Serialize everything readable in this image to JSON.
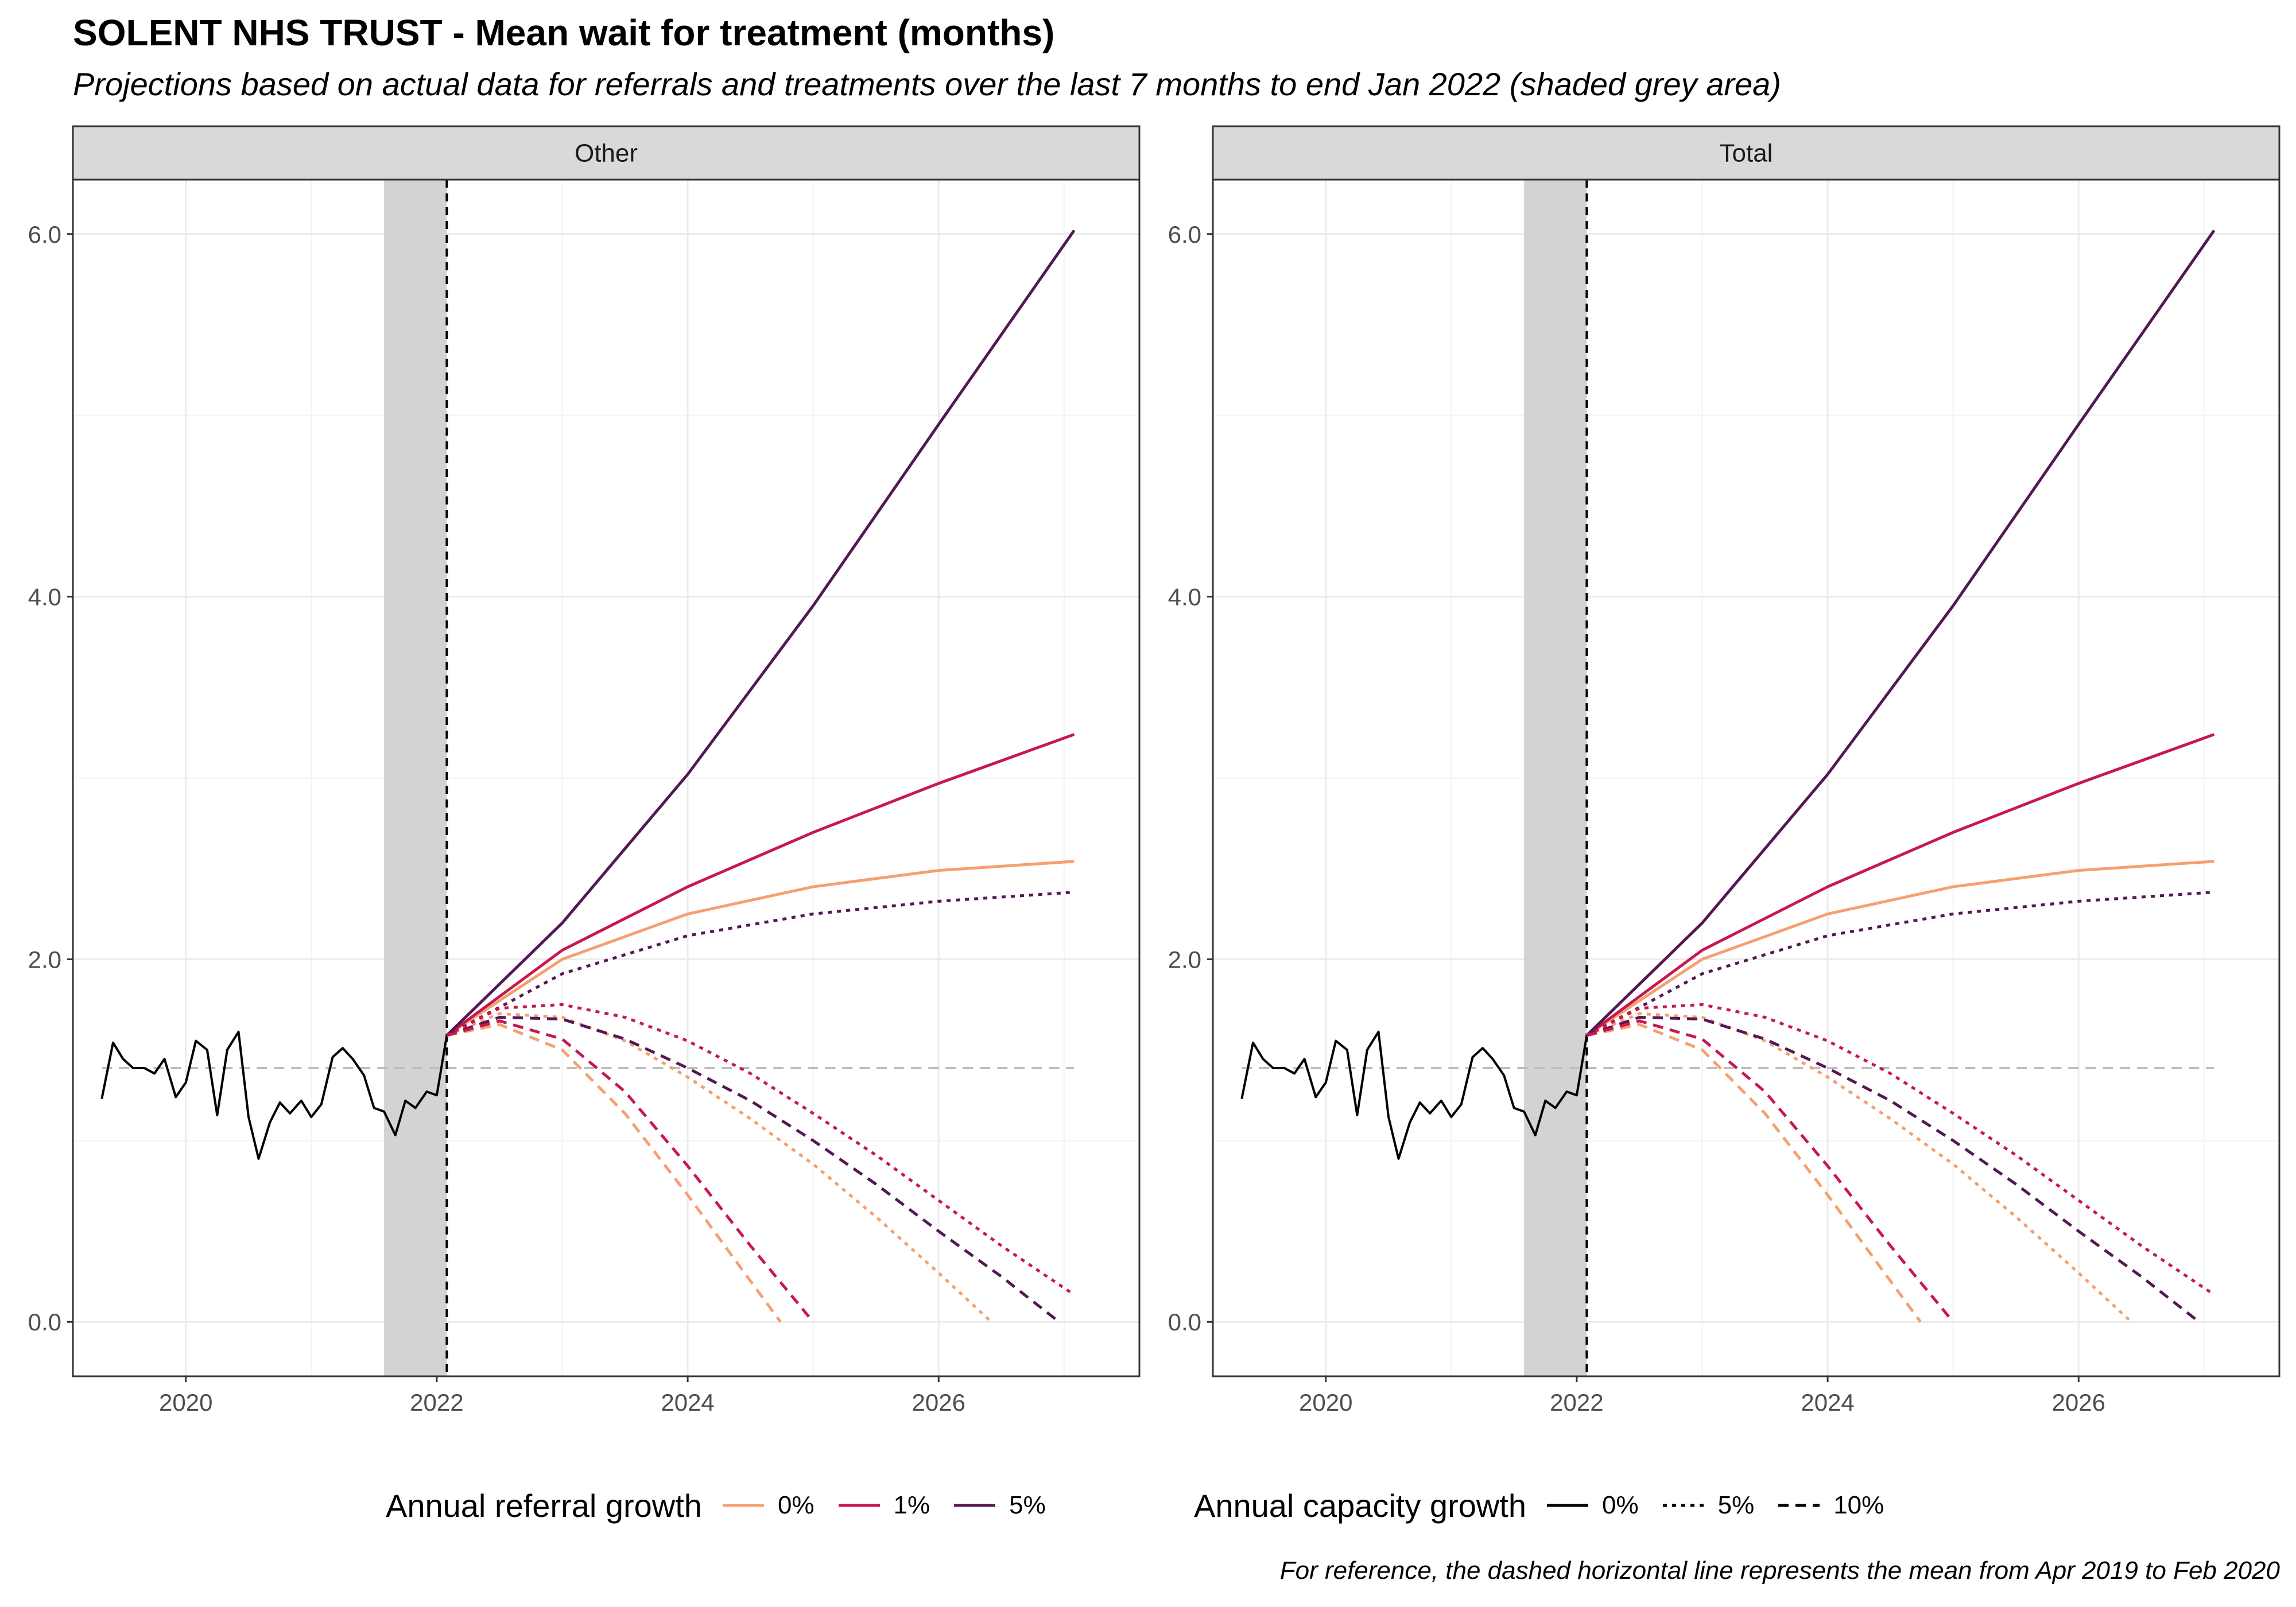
{
  "title": "SOLENT NHS TRUST - Mean wait for treatment (months)",
  "subtitle": "Projections based on actual data for referrals and treatments over the last 7 months to end Jan 2022 (shaded grey area)",
  "caption": "For reference, the dashed horizontal line represents the mean from Apr 2019 to Feb 2020",
  "legends": {
    "referral": {
      "title": "Annual referral growth",
      "items": [
        {
          "label": "0%",
          "color": "#F4A070"
        },
        {
          "label": "1%",
          "color": "#C8184E"
        },
        {
          "label": "5%",
          "color": "#541852"
        }
      ]
    },
    "capacity": {
      "title": "Annual capacity growth",
      "items": [
        {
          "label": "0%",
          "dash": "solid"
        },
        {
          "label": "5%",
          "dash": "dotted"
        },
        {
          "label": "10%",
          "dash": "dashed"
        }
      ]
    }
  },
  "chart_data": [
    {
      "type": "line",
      "panel": "Other",
      "xlim": [
        2019.1,
        2027.6
      ],
      "ylim": [
        -0.3,
        6.3
      ],
      "x_ticks": [
        2020,
        2022,
        2024,
        2026
      ],
      "y_ticks": [
        0.0,
        2.0,
        4.0,
        6.0
      ],
      "y_tick_labels": [
        "0.0",
        "2.0",
        "4.0",
        "6.0"
      ],
      "grid": true,
      "shaded_region": [
        2021.58,
        2022.08
      ],
      "vline_x": 2022.08,
      "reference_mean": 1.4,
      "actual": {
        "x": [
          2019.33,
          2019.42,
          2019.5,
          2019.58,
          2019.67,
          2019.75,
          2019.83,
          2019.92,
          2020.0,
          2020.08,
          2020.17,
          2020.25,
          2020.33,
          2020.42,
          2020.5,
          2020.58,
          2020.67,
          2020.75,
          2020.83,
          2020.92,
          2021.0,
          2021.08,
          2021.17,
          2021.25,
          2021.33,
          2021.42,
          2021.5,
          2021.58,
          2021.67,
          2021.75,
          2021.83,
          2021.92,
          2022.0,
          2022.08
        ],
        "y": [
          1.23,
          1.54,
          1.45,
          1.4,
          1.4,
          1.37,
          1.45,
          1.24,
          1.32,
          1.55,
          1.5,
          1.14,
          1.5,
          1.6,
          1.13,
          0.9,
          1.1,
          1.21,
          1.15,
          1.22,
          1.13,
          1.2,
          1.46,
          1.51,
          1.45,
          1.36,
          1.18,
          1.16,
          1.03,
          1.22,
          1.18,
          1.27,
          1.25,
          1.58
        ]
      },
      "projections": [
        {
          "referral_growth": "0%",
          "capacity_growth": "0%",
          "x": [
            2022.08,
            2023,
            2024,
            2025,
            2026,
            2027.08
          ],
          "y": [
            1.58,
            2.0,
            2.25,
            2.4,
            2.49,
            2.54
          ]
        },
        {
          "referral_growth": "1%",
          "capacity_growth": "0%",
          "x": [
            2022.08,
            2023,
            2024,
            2025,
            2026,
            2027.08
          ],
          "y": [
            1.58,
            2.05,
            2.4,
            2.7,
            2.97,
            3.24
          ]
        },
        {
          "referral_growth": "5%",
          "capacity_growth": "0%",
          "x": [
            2022.08,
            2023,
            2024,
            2025,
            2026,
            2027.08
          ],
          "y": [
            1.58,
            2.2,
            3.02,
            3.95,
            4.95,
            6.02
          ]
        },
        {
          "referral_growth": "5%",
          "capacity_growth": "5%",
          "x": [
            2022.08,
            2023,
            2024,
            2025,
            2026,
            2027.08
          ],
          "y": [
            1.58,
            1.92,
            2.13,
            2.25,
            2.32,
            2.37
          ]
        },
        {
          "referral_growth": "0%",
          "capacity_growth": "5%",
          "x": [
            2022.08,
            2022.5,
            2023,
            2023.5,
            2024,
            2024.5,
            2025,
            2025.5,
            2026,
            2026.42
          ],
          "y": [
            1.58,
            1.7,
            1.68,
            1.55,
            1.35,
            1.12,
            0.87,
            0.58,
            0.27,
            0.0
          ]
        },
        {
          "referral_growth": "1%",
          "capacity_growth": "5%",
          "x": [
            2022.08,
            2022.5,
            2023,
            2023.5,
            2024,
            2024.5,
            2025,
            2025.5,
            2026,
            2026.5,
            2027.08
          ],
          "y": [
            1.58,
            1.73,
            1.75,
            1.68,
            1.55,
            1.37,
            1.15,
            0.92,
            0.67,
            0.42,
            0.15
          ]
        },
        {
          "referral_growth": "5%",
          "capacity_growth": "10%",
          "x": [
            2022.08,
            2022.5,
            2023,
            2023.5,
            2024,
            2024.5,
            2025,
            2025.5,
            2026,
            2026.5,
            2026.96
          ],
          "y": [
            1.58,
            1.68,
            1.67,
            1.56,
            1.4,
            1.22,
            1.0,
            0.76,
            0.5,
            0.25,
            0.0
          ]
        },
        {
          "referral_growth": "0%",
          "capacity_growth": "10%",
          "x": [
            2022.08,
            2022.5,
            2023,
            2023.5,
            2024,
            2024.4,
            2024.74
          ],
          "y": [
            1.58,
            1.64,
            1.5,
            1.15,
            0.7,
            0.32,
            0.0
          ]
        },
        {
          "referral_growth": "1%",
          "capacity_growth": "10%",
          "x": [
            2022.08,
            2022.5,
            2023,
            2023.5,
            2024,
            2024.5,
            2025.0
          ],
          "y": [
            1.58,
            1.66,
            1.56,
            1.27,
            0.86,
            0.42,
            0.0
          ]
        }
      ]
    },
    {
      "type": "line",
      "panel": "Total",
      "xlim": [
        2019.1,
        2027.6
      ],
      "ylim": [
        -0.3,
        6.3
      ],
      "x_ticks": [
        2020,
        2022,
        2024,
        2026
      ],
      "y_ticks": [
        0.0,
        2.0,
        4.0,
        6.0
      ],
      "y_tick_labels": [
        "0.0",
        "2.0",
        "4.0",
        "6.0"
      ],
      "grid": true,
      "shaded_region": [
        2021.58,
        2022.08
      ],
      "vline_x": 2022.08,
      "reference_mean": 1.4,
      "actual": {
        "x": [
          2019.33,
          2019.42,
          2019.5,
          2019.58,
          2019.67,
          2019.75,
          2019.83,
          2019.92,
          2020.0,
          2020.08,
          2020.17,
          2020.25,
          2020.33,
          2020.42,
          2020.5,
          2020.58,
          2020.67,
          2020.75,
          2020.83,
          2020.92,
          2021.0,
          2021.08,
          2021.17,
          2021.25,
          2021.33,
          2021.42,
          2021.5,
          2021.58,
          2021.67,
          2021.75,
          2021.83,
          2021.92,
          2022.0,
          2022.08
        ],
        "y": [
          1.23,
          1.54,
          1.45,
          1.4,
          1.4,
          1.37,
          1.45,
          1.24,
          1.32,
          1.55,
          1.5,
          1.14,
          1.5,
          1.6,
          1.13,
          0.9,
          1.1,
          1.21,
          1.15,
          1.22,
          1.13,
          1.2,
          1.46,
          1.51,
          1.45,
          1.36,
          1.18,
          1.16,
          1.03,
          1.22,
          1.18,
          1.27,
          1.25,
          1.58
        ]
      },
      "projections": [
        {
          "referral_growth": "0%",
          "capacity_growth": "0%",
          "x": [
            2022.08,
            2023,
            2024,
            2025,
            2026,
            2027.08
          ],
          "y": [
            1.58,
            2.0,
            2.25,
            2.4,
            2.49,
            2.54
          ]
        },
        {
          "referral_growth": "1%",
          "capacity_growth": "0%",
          "x": [
            2022.08,
            2023,
            2024,
            2025,
            2026,
            2027.08
          ],
          "y": [
            1.58,
            2.05,
            2.4,
            2.7,
            2.97,
            3.24
          ]
        },
        {
          "referral_growth": "5%",
          "capacity_growth": "0%",
          "x": [
            2022.08,
            2023,
            2024,
            2025,
            2026,
            2027.08
          ],
          "y": [
            1.58,
            2.2,
            3.02,
            3.95,
            4.95,
            6.02
          ]
        },
        {
          "referral_growth": "5%",
          "capacity_growth": "5%",
          "x": [
            2022.08,
            2023,
            2024,
            2025,
            2026,
            2027.08
          ],
          "y": [
            1.58,
            1.92,
            2.13,
            2.25,
            2.32,
            2.37
          ]
        },
        {
          "referral_growth": "0%",
          "capacity_growth": "5%",
          "x": [
            2022.08,
            2022.5,
            2023,
            2023.5,
            2024,
            2024.5,
            2025,
            2025.5,
            2026,
            2026.42
          ],
          "y": [
            1.58,
            1.7,
            1.68,
            1.55,
            1.35,
            1.12,
            0.87,
            0.58,
            0.27,
            0.0
          ]
        },
        {
          "referral_growth": "1%",
          "capacity_growth": "5%",
          "x": [
            2022.08,
            2022.5,
            2023,
            2023.5,
            2024,
            2024.5,
            2025,
            2025.5,
            2026,
            2026.5,
            2027.08
          ],
          "y": [
            1.58,
            1.73,
            1.75,
            1.68,
            1.55,
            1.37,
            1.15,
            0.92,
            0.67,
            0.42,
            0.15
          ]
        },
        {
          "referral_growth": "5%",
          "capacity_growth": "10%",
          "x": [
            2022.08,
            2022.5,
            2023,
            2023.5,
            2024,
            2024.5,
            2025,
            2025.5,
            2026,
            2026.5,
            2026.96
          ],
          "y": [
            1.58,
            1.68,
            1.67,
            1.56,
            1.4,
            1.22,
            1.0,
            0.76,
            0.5,
            0.25,
            0.0
          ]
        },
        {
          "referral_growth": "0%",
          "capacity_growth": "10%",
          "x": [
            2022.08,
            2022.5,
            2023,
            2023.5,
            2024,
            2024.4,
            2024.74
          ],
          "y": [
            1.58,
            1.64,
            1.5,
            1.15,
            0.7,
            0.32,
            0.0
          ]
        },
        {
          "referral_growth": "1%",
          "capacity_growth": "10%",
          "x": [
            2022.08,
            2022.5,
            2023,
            2023.5,
            2024,
            2024.5,
            2025.0
          ],
          "y": [
            1.58,
            1.66,
            1.56,
            1.27,
            0.86,
            0.42,
            0.0
          ]
        }
      ]
    }
  ]
}
